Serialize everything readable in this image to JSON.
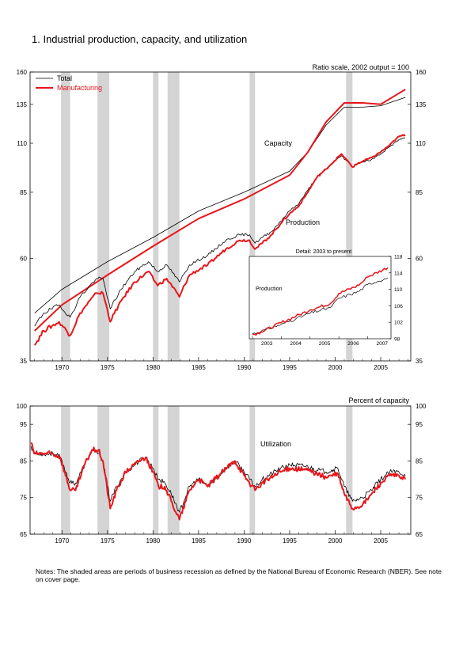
{
  "title": "1.  Industrial production, capacity, and utilization",
  "notes": "Notes: The shaded areas are periods of business recession as defined by the National Bureau of Economic Research (NBER). See note on cover page.",
  "colors": {
    "total": "#000000",
    "manufacturing": "#e8161b",
    "recession": "#d4d4d4"
  },
  "chart_data": [
    {
      "type": "line",
      "scale": "log",
      "note": "Ratio scale, 2002 output = 100",
      "legend": [
        "Total",
        "Manufacturing"
      ],
      "legend_position": "top-left",
      "labels": [
        "Capacity",
        "Production"
      ],
      "xlim": [
        1966.5,
        2008.3
      ],
      "ylim": [
        35,
        160
      ],
      "yticks": [
        35,
        60,
        85,
        110,
        135,
        160
      ],
      "xticks": [
        1970,
        1975,
        1980,
        1985,
        1990,
        1995,
        2000,
        2005
      ],
      "recessions": [
        [
          1969.9,
          1970.9
        ],
        [
          1973.9,
          1975.2
        ],
        [
          1980.0,
          1980.6
        ],
        [
          1981.6,
          1982.9
        ],
        [
          1990.6,
          1991.2
        ],
        [
          2001.2,
          2001.9
        ]
      ],
      "series": [
        {
          "name": "Total",
          "group": "Capacity",
          "x": [
            1967,
            1970,
            1975,
            1980,
            1985,
            1990,
            1995,
            1997,
            1999,
            2001,
            2003,
            2005,
            2007.7
          ],
          "values": [
            45,
            51,
            59,
            67,
            77,
            85,
            95,
            105,
            121,
            133,
            133,
            134,
            140
          ]
        },
        {
          "name": "Manufacturing",
          "group": "Capacity",
          "x": [
            1967,
            1970,
            1975,
            1980,
            1985,
            1990,
            1995,
            1997,
            1999,
            2001,
            2003,
            2005,
            2007.7
          ],
          "values": [
            41,
            47,
            55,
            64,
            74,
            82,
            93,
            105,
            123,
            136,
            136,
            135,
            146
          ]
        },
        {
          "name": "Total",
          "group": "Production",
          "x": [
            1967,
            1968,
            1969.7,
            1970.9,
            1972,
            1973.8,
            1974.5,
            1975.3,
            1976.5,
            1978,
            1979.5,
            1980.5,
            1981.5,
            1982.9,
            1984,
            1986,
            1988,
            1989.5,
            1990.6,
            1991.2,
            1992,
            1993,
            1994,
            1995,
            1996,
            1997,
            1998,
            1999,
            2000.7,
            2001.9,
            2002.5,
            2004,
            2005,
            2006,
            2007,
            2007.7
          ],
          "values": [
            42,
            45,
            47,
            44,
            49,
            54,
            54,
            46,
            51,
            56,
            59,
            56,
            58,
            53,
            58,
            61,
            66,
            68,
            68,
            65,
            67,
            69,
            73,
            77,
            80,
            86,
            92,
            96,
            103,
            97,
            99,
            101,
            104,
            108,
            112,
            113
          ]
        },
        {
          "name": "Manufacturing",
          "group": "Production",
          "x": [
            1967,
            1968,
            1969.7,
            1970.9,
            1972,
            1973.8,
            1974.5,
            1975.3,
            1976.5,
            1978,
            1979.5,
            1980.5,
            1981.5,
            1982.9,
            1984,
            1986,
            1988,
            1989.5,
            1990.6,
            1991.2,
            1992,
            1993,
            1994,
            1995,
            1996,
            1997,
            1998,
            1999,
            2000.7,
            2001.9,
            2002.5,
            2004,
            2005,
            2006,
            2007,
            2007.7
          ],
          "values": [
            38,
            41,
            43,
            40,
            45,
            50,
            50,
            43,
            48,
            53,
            56,
            52,
            54,
            49,
            55,
            58,
            63,
            66,
            66,
            63,
            65,
            68,
            72,
            76,
            79,
            85,
            92,
            96,
            104,
            97,
            99,
            102,
            105,
            109,
            114,
            115
          ]
        }
      ]
    },
    {
      "type": "line",
      "title": "Detail: 2003 to present",
      "label": "Production",
      "xlim": [
        2003,
        2007.7
      ],
      "ylim": [
        98,
        118
      ],
      "yticks": [
        98,
        102,
        106,
        110,
        114,
        118
      ],
      "xticks": [
        2003,
        2004,
        2005,
        2006,
        2007
      ],
      "series": [
        {
          "name": "Total",
          "x": [
            2003,
            2003.3,
            2004,
            2004.5,
            2005,
            2005.7,
            2006,
            2006.7,
            2007,
            2007.7
          ],
          "values": [
            99.2,
            99.8,
            101.5,
            102.8,
            104.2,
            105.6,
            107.8,
            109.5,
            111.2,
            112.8
          ]
        },
        {
          "name": "Manufacturing",
          "x": [
            2003,
            2003.3,
            2004,
            2004.5,
            2005,
            2005.7,
            2006,
            2006.7,
            2007,
            2007.7
          ],
          "values": [
            99.0,
            99.6,
            101.9,
            103.4,
            105.0,
            106.5,
            109.0,
            111.0,
            113.0,
            115.3
          ]
        }
      ]
    },
    {
      "type": "line",
      "note": "Percent of capacity",
      "label": "Utilization",
      "xlim": [
        1966.5,
        2008.3
      ],
      "ylim": [
        65,
        100
      ],
      "yticks": [
        65,
        75,
        85,
        95,
        100
      ],
      "xticks": [
        1970,
        1975,
        1980,
        1985,
        1990,
        1995,
        2000,
        2005
      ],
      "recessions": [
        [
          1969.9,
          1970.9
        ],
        [
          1973.9,
          1975.2
        ],
        [
          1980.0,
          1980.6
        ],
        [
          1981.6,
          1982.9
        ],
        [
          1990.6,
          1991.2
        ],
        [
          2001.2,
          2001.9
        ]
      ],
      "series": [
        {
          "name": "Total",
          "x": [
            1966.6,
            1967,
            1968,
            1969,
            1969.8,
            1970.9,
            1971.5,
            1972.5,
            1973.3,
            1974,
            1974.5,
            1975.3,
            1976,
            1977,
            1978.5,
            1979.2,
            1980,
            1980.6,
            1981.3,
            1982,
            1982.9,
            1984,
            1985,
            1986,
            1988,
            1989,
            1990,
            1991.2,
            1992,
            1994,
            1995,
            1997,
            1998,
            1999,
            2000.3,
            2001,
            2001.9,
            2003,
            2004,
            2005,
            2006,
            2007,
            2007.7
          ],
          "values": [
            89,
            87,
            87,
            87,
            86,
            79,
            79,
            84,
            88,
            87,
            85,
            74,
            78,
            82,
            85,
            86,
            83,
            80,
            79,
            76,
            71,
            78,
            80,
            78,
            83,
            85,
            82,
            78,
            80,
            83,
            84,
            83.5,
            82.5,
            82,
            83,
            78,
            74,
            75,
            77,
            80,
            82,
            82,
            81
          ]
        },
        {
          "name": "Manufacturing",
          "x": [
            1966.6,
            1967,
            1968,
            1969,
            1969.8,
            1970.9,
            1971.5,
            1972.5,
            1973.3,
            1974,
            1974.5,
            1975.3,
            1976,
            1977,
            1978.5,
            1979.2,
            1980,
            1980.6,
            1981.3,
            1982,
            1982.9,
            1984,
            1985,
            1986,
            1988,
            1989,
            1990,
            1991.2,
            1992,
            1994,
            1995,
            1997,
            1998,
            1999,
            2000.3,
            2001,
            2001.9,
            2003,
            2004,
            2005,
            2006,
            2007,
            2007.7
          ],
          "values": [
            90,
            87,
            87,
            87,
            86,
            77,
            77,
            84,
            88,
            88,
            85,
            72,
            77,
            82,
            85,
            86,
            82,
            78,
            78,
            74,
            69,
            77,
            80,
            78,
            83,
            85,
            81,
            77,
            79,
            82,
            83,
            82.5,
            81.5,
            80.5,
            81.5,
            76,
            72,
            73,
            76,
            79,
            81,
            81,
            80
          ]
        }
      ]
    }
  ]
}
